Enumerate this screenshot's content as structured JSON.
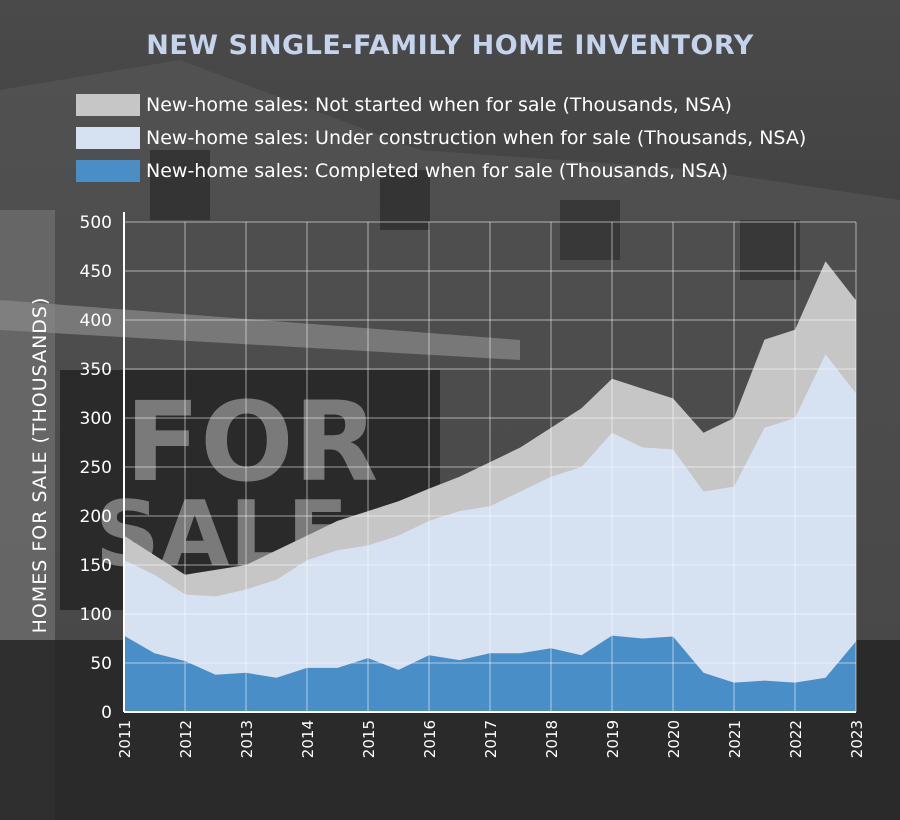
{
  "colors": {
    "not_started": "#c6c6c6",
    "under_construction": "#d6e1f2",
    "completed": "#4a8ec8",
    "title": "#c5d3ec",
    "grid": "#ffffff"
  },
  "background": {
    "sign_text_top": "FOR",
    "sign_text_bottom": "SALE"
  },
  "chart_data": {
    "type": "area",
    "stacked": false,
    "title": "NEW SINGLE-FAMILY HOME INVENTORY",
    "ylabel": "HOMES FOR SALE (THOUSANDS)",
    "xlabel": "",
    "ylim": [
      0,
      500
    ],
    "yticks": [
      0,
      50,
      100,
      150,
      200,
      250,
      300,
      350,
      400,
      450,
      500
    ],
    "xlim": [
      2011,
      2023
    ],
    "xticks": [
      "2011",
      "2012",
      "2013",
      "2014",
      "2015",
      "2016",
      "2017",
      "2018",
      "2019",
      "2020",
      "2021",
      "2022",
      "2023"
    ],
    "grid": true,
    "legend_position": "top-left",
    "x": [
      2011.0,
      2011.5,
      2012.0,
      2012.5,
      2013.0,
      2013.5,
      2014.0,
      2014.5,
      2015.0,
      2015.5,
      2016.0,
      2016.5,
      2017.0,
      2017.5,
      2018.0,
      2018.5,
      2019.0,
      2019.5,
      2020.0,
      2020.5,
      2021.0,
      2021.5,
      2022.0,
      2022.5,
      2023.0
    ],
    "series": [
      {
        "name": "New-home sales: Not started when for sale (Thousands, NSA)",
        "key": "not_started",
        "values": [
          180,
          160,
          140,
          145,
          150,
          165,
          180,
          195,
          205,
          215,
          228,
          240,
          255,
          270,
          290,
          310,
          340,
          330,
          320,
          285,
          300,
          380,
          390,
          460,
          420
        ]
      },
      {
        "name": "New-home sales: Under construction when for sale (Thousands, NSA)",
        "key": "under_construction",
        "values": [
          155,
          140,
          120,
          118,
          125,
          135,
          155,
          165,
          170,
          180,
          195,
          205,
          210,
          225,
          240,
          250,
          285,
          270,
          268,
          225,
          230,
          290,
          300,
          365,
          325
        ]
      },
      {
        "name": "New-home sales: Completed when for sale (Thousands, NSA)",
        "key": "completed",
        "values": [
          78,
          60,
          52,
          38,
          40,
          35,
          45,
          45,
          55,
          43,
          58,
          53,
          60,
          60,
          65,
          58,
          78,
          75,
          77,
          40,
          30,
          32,
          30,
          35,
          72
        ]
      }
    ]
  }
}
